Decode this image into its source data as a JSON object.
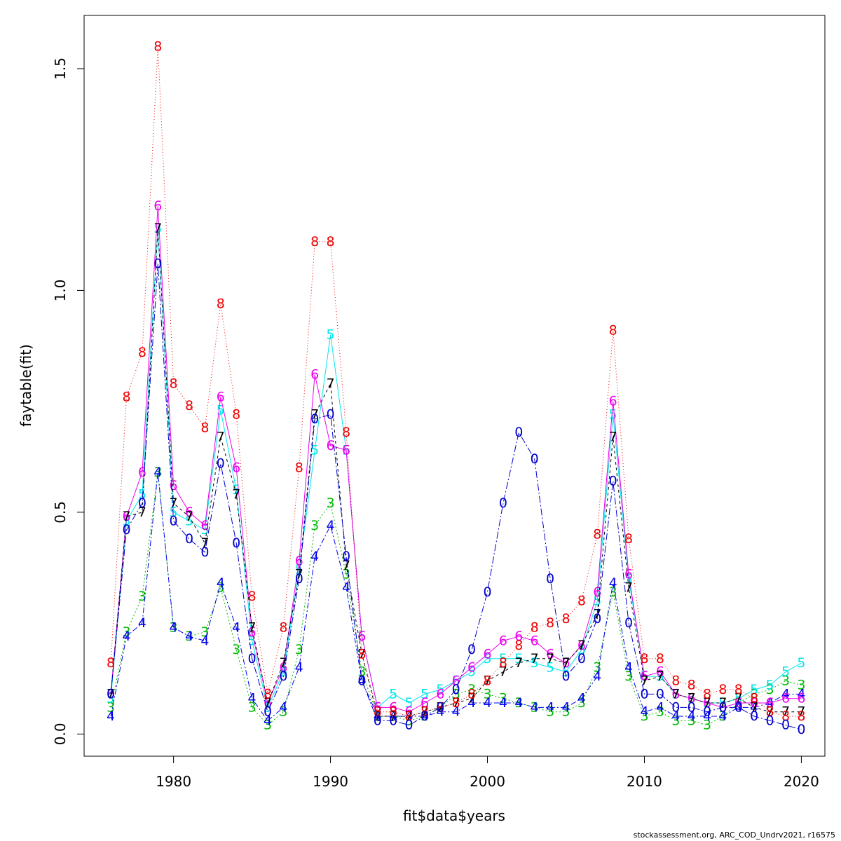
{
  "chart_data": {
    "type": "line",
    "title": "",
    "xlabel": "fit$data$years",
    "ylabel": "faytable(fit)",
    "xlim": [
      1974.3,
      2021.5
    ],
    "ylim": [
      -0.05,
      1.62
    ],
    "x_ticks": [
      1980,
      1990,
      2000,
      2010,
      2020
    ],
    "x_tick_labels": [
      "1980",
      "1990",
      "2000",
      "2010",
      "2020"
    ],
    "y_ticks": [
      0.0,
      0.5,
      1.0,
      1.5
    ],
    "y_tick_labels": [
      "0.0",
      "0.5",
      "1.0",
      "1.5"
    ],
    "grid": false,
    "legend": "none",
    "x": [
      1976,
      1977,
      1978,
      1979,
      1980,
      1981,
      1982,
      1983,
      1984,
      1985,
      1986,
      1987,
      1988,
      1989,
      1990,
      1991,
      1992,
      1993,
      1994,
      1995,
      1996,
      1997,
      1998,
      1999,
      2000,
      2001,
      2002,
      2003,
      2004,
      2005,
      2006,
      2007,
      2008,
      2009,
      2010,
      2011,
      2012,
      2013,
      2014,
      2015,
      2016,
      2017,
      2018,
      2019,
      2020
    ],
    "series": [
      {
        "symbol": "3",
        "color": "#00bb00",
        "dash": "2,3",
        "values": [
          0.06,
          0.23,
          0.31,
          0.59,
          0.24,
          0.22,
          0.23,
          0.33,
          0.19,
          0.06,
          0.02,
          0.05,
          0.19,
          0.47,
          0.52,
          0.36,
          0.14,
          0.04,
          0.04,
          0.03,
          0.04,
          0.06,
          0.09,
          0.1,
          0.09,
          0.08,
          0.07,
          0.06,
          0.05,
          0.05,
          0.07,
          0.15,
          0.32,
          0.13,
          0.04,
          0.05,
          0.03,
          0.03,
          0.02,
          0.04,
          0.07,
          0.09,
          0.1,
          0.12,
          0.11
        ]
      },
      {
        "symbol": "4",
        "color": "#0000ee",
        "dash": "8,3,2,3",
        "values": [
          0.04,
          0.22,
          0.25,
          0.59,
          0.24,
          0.22,
          0.21,
          0.34,
          0.24,
          0.08,
          0.03,
          0.06,
          0.15,
          0.4,
          0.47,
          0.33,
          0.12,
          0.04,
          0.04,
          0.04,
          0.04,
          0.05,
          0.05,
          0.07,
          0.07,
          0.07,
          0.07,
          0.06,
          0.06,
          0.06,
          0.08,
          0.13,
          0.34,
          0.15,
          0.05,
          0.06,
          0.04,
          0.04,
          0.04,
          0.04,
          0.06,
          0.06,
          0.07,
          0.09,
          0.09
        ]
      },
      {
        "symbol": "5",
        "color": "#00e5ee",
        "dash": "",
        "values": [
          0.08,
          0.48,
          0.54,
          1.14,
          0.5,
          0.48,
          0.46,
          0.73,
          0.55,
          0.21,
          0.06,
          0.14,
          0.37,
          0.64,
          0.9,
          0.64,
          0.22,
          0.06,
          0.09,
          0.07,
          0.09,
          0.1,
          0.12,
          0.14,
          0.17,
          0.17,
          0.17,
          0.16,
          0.15,
          0.14,
          0.19,
          0.3,
          0.72,
          0.35,
          0.13,
          0.13,
          0.09,
          0.08,
          0.07,
          0.07,
          0.08,
          0.1,
          0.11,
          0.14,
          0.16
        ]
      },
      {
        "symbol": "6",
        "color": "#ee00ee",
        "dash": "",
        "values": [
          0.09,
          0.49,
          0.59,
          1.19,
          0.56,
          0.5,
          0.47,
          0.76,
          0.6,
          0.23,
          0.07,
          0.15,
          0.39,
          0.81,
          0.65,
          0.64,
          0.22,
          0.06,
          0.06,
          0.05,
          0.07,
          0.09,
          0.12,
          0.15,
          0.18,
          0.21,
          0.22,
          0.21,
          0.18,
          0.16,
          0.2,
          0.32,
          0.75,
          0.36,
          0.13,
          0.14,
          0.09,
          0.08,
          0.07,
          0.06,
          0.07,
          0.07,
          0.07,
          0.08,
          0.08
        ]
      },
      {
        "symbol": "7",
        "color": "#000000",
        "dash": "4,4",
        "values": [
          0.09,
          0.49,
          0.5,
          1.14,
          0.52,
          0.49,
          0.43,
          0.67,
          0.54,
          0.24,
          0.07,
          0.16,
          0.36,
          0.72,
          0.79,
          0.38,
          0.18,
          0.04,
          0.04,
          0.04,
          0.05,
          0.06,
          0.07,
          0.08,
          0.12,
          0.14,
          0.16,
          0.17,
          0.17,
          0.16,
          0.2,
          0.27,
          0.67,
          0.33,
          0.12,
          0.13,
          0.09,
          0.08,
          0.07,
          0.07,
          0.08,
          0.06,
          0.05,
          0.05,
          0.05
        ]
      },
      {
        "symbol": "8",
        "color": "#ee0000",
        "dash": "1,3",
        "values": [
          0.16,
          0.76,
          0.86,
          1.55,
          0.79,
          0.74,
          0.69,
          0.97,
          0.72,
          0.31,
          0.09,
          0.24,
          0.6,
          1.11,
          1.11,
          0.68,
          0.18,
          0.05,
          0.05,
          0.04,
          0.05,
          0.06,
          0.07,
          0.09,
          0.12,
          0.16,
          0.2,
          0.24,
          0.25,
          0.26,
          0.3,
          0.45,
          0.91,
          0.44,
          0.17,
          0.17,
          0.12,
          0.11,
          0.09,
          0.1,
          0.1,
          0.08,
          0.05,
          0.04,
          0.04
        ]
      },
      {
        "symbol": "0",
        "color": "#0000cd",
        "dash": "10,3,2,3",
        "values": [
          0.09,
          0.46,
          0.52,
          1.06,
          0.48,
          0.44,
          0.41,
          0.61,
          0.43,
          0.17,
          0.05,
          0.13,
          0.35,
          0.71,
          0.72,
          0.4,
          0.12,
          0.03,
          0.03,
          0.02,
          0.04,
          0.06,
          0.1,
          0.19,
          0.32,
          0.52,
          0.68,
          0.62,
          0.35,
          0.13,
          0.17,
          0.26,
          0.57,
          0.25,
          0.09,
          0.09,
          0.06,
          0.06,
          0.05,
          0.06,
          0.06,
          0.04,
          0.03,
          0.02,
          0.01
        ]
      }
    ]
  },
  "footer": {
    "credit": "stockassessment.org, ARC_COD_Undrv2021, r16575"
  }
}
